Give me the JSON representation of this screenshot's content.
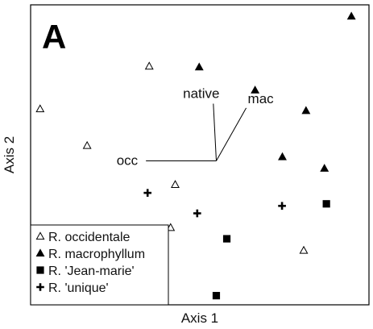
{
  "chart_data": {
    "type": "scatter",
    "panel_label": "A",
    "xlabel": "Axis 1",
    "ylabel": "Axis 2",
    "grid": false,
    "legend_position": "bottom-left",
    "xlim": [
      0,
      100
    ],
    "ylim": [
      0,
      100
    ],
    "series": [
      {
        "name": "R. occidentale",
        "marker": "open-triangle",
        "color": "#000000",
        "points": [
          {
            "x": 2.4,
            "y": 66.2
          },
          {
            "x": 16.7,
            "y": 53.5
          },
          {
            "x": 35.6,
            "y": 81.0
          },
          {
            "x": 43.5,
            "y": 40.0
          },
          {
            "x": 42.1,
            "y": 25.1
          },
          {
            "x": 82.6,
            "y": 17.2
          }
        ]
      },
      {
        "name": "R. macrophyllum",
        "marker": "filled-triangle",
        "color": "#000000",
        "points": [
          {
            "x": 97.1,
            "y": 98.3
          },
          {
            "x": 50.8,
            "y": 80.7
          },
          {
            "x": 67.8,
            "y": 72.7
          },
          {
            "x": 83.3,
            "y": 65.6
          },
          {
            "x": 76.1,
            "y": 49.6
          },
          {
            "x": 88.9,
            "y": 45.6
          }
        ]
      },
      {
        "name": "R. 'Jean-marie'",
        "marker": "filled-square",
        "color": "#000000",
        "points": [
          {
            "x": 89.5,
            "y": 33.3
          },
          {
            "x": 59.2,
            "y": 21.2
          },
          {
            "x": 56.0,
            "y": 1.5
          }
        ]
      },
      {
        "name": "R. 'unique'",
        "marker": "plus",
        "color": "#000000",
        "points": [
          {
            "x": 35.1,
            "y": 37.1
          },
          {
            "x": 50.2,
            "y": 30.0
          },
          {
            "x": 76.0,
            "y": 32.6
          }
        ]
      }
    ],
    "vectors": [
      {
        "label": "native",
        "dx": -0.9,
        "dy": 19.8
      },
      {
        "label": "mac",
        "dx": 9.1,
        "dy": 18.3
      },
      {
        "label": "occ",
        "dx": -21.4,
        "dy": 0
      }
    ],
    "vector_origin": {
      "x": 56.0,
      "y": 48.2
    }
  }
}
